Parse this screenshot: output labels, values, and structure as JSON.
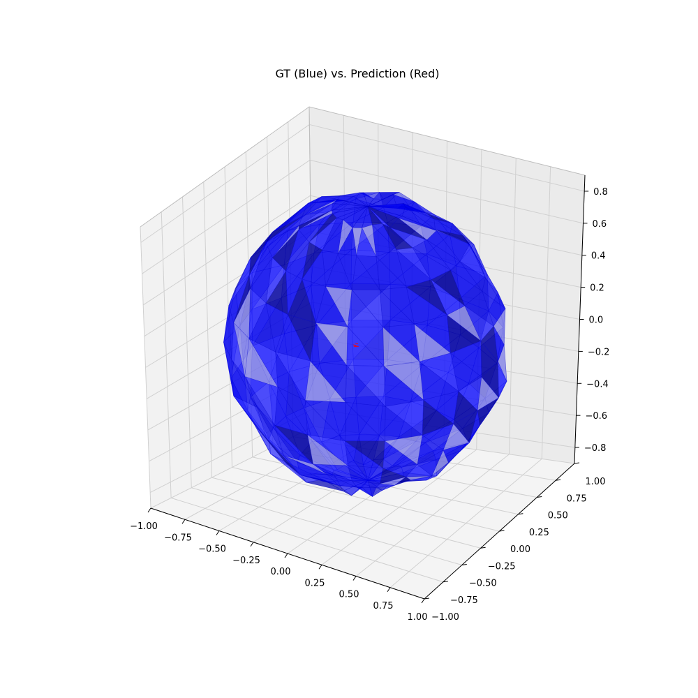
{
  "chart_data": {
    "type": "surface3d",
    "title": "GT (Blue) vs. Prediction (Red)",
    "xlabel": "",
    "ylabel": "",
    "zlabel": "",
    "xlim": [
      -1.0,
      1.0
    ],
    "ylim": [
      -1.0,
      1.0
    ],
    "zlim": [
      -0.9,
      0.9
    ],
    "grid": true,
    "x_ticks": [
      "−1.00",
      "−0.75",
      "−0.50",
      "−0.25",
      "0.00",
      "0.25",
      "0.50",
      "0.75",
      "1.00"
    ],
    "y_ticks": [
      "−1.00",
      "−0.75",
      "−0.50",
      "−0.25",
      "0.00",
      "0.25",
      "0.50",
      "0.75",
      "1.00"
    ],
    "z_ticks": [
      "−0.8",
      "−0.6",
      "−0.4",
      "−0.2",
      "0.0",
      "0.2",
      "0.4",
      "0.6",
      "0.8"
    ],
    "series": [
      {
        "color": "#0000ff",
        "shape": "sphere-mesh",
        "center": [
          0.0,
          0.0,
          0.0
        ],
        "radius": 0.9
      },
      {
        "color": "#ff0000",
        "shape": "points",
        "center": [
          0.0,
          0.0,
          -0.1
        ]
      }
    ]
  }
}
